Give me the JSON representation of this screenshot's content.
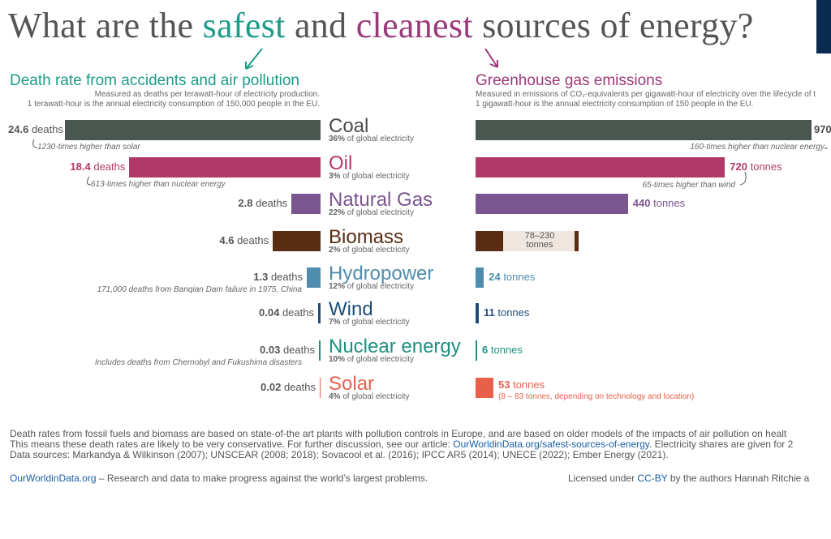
{
  "title": {
    "prefix": "What are the",
    "safest": "safest",
    "and": "and",
    "cleanest": "cleanest",
    "suffix": "sources of energy?"
  },
  "left_panel": {
    "heading": "Death rate from accidents and air pollution",
    "sub1": "Measured as deaths per terawatt-hour of electricity production.",
    "sub2": "1 terawatt-hour is the annual electricity consumption of 150,000 people in the EU."
  },
  "right_panel": {
    "heading": "Greenhouse gas emissions",
    "sub1": "Measured in emissions of CO₂-equivalents per gigawatt-hour of electricity over the lifecycle of t",
    "sub2": "1 gigawatt-hour is the annual electricity consumption of 150 people in the EU."
  },
  "colors": {
    "coal": "#4a5750",
    "oil": "#b1396a",
    "gas": "#7b5590",
    "biomass": "#5a2c14",
    "hydro": "#4f8cad",
    "wind": "#1e4d78",
    "nuclear": "#1e8f80",
    "solar": "#e8604c"
  },
  "chart_data": [
    {
      "type": "bar",
      "title": "Death rate from accidents and air pollution",
      "categories": [
        "Coal",
        "Oil",
        "Natural Gas",
        "Biomass",
        "Hydropower",
        "Wind",
        "Nuclear energy",
        "Solar"
      ],
      "values": [
        24.6,
        18.4,
        2.8,
        4.6,
        1.3,
        0.04,
        0.03,
        0.02
      ],
      "unit": "deaths per terawatt-hour",
      "value_labels": [
        "24.6",
        "18.4",
        "2.8",
        "4.6",
        "1.3",
        "0.04",
        "0.03",
        "0.02"
      ],
      "unit_word": "deaths",
      "orientation": "horizontal-leftward"
    },
    {
      "type": "bar",
      "title": "Greenhouse gas emissions",
      "categories": [
        "Coal",
        "Oil",
        "Natural Gas",
        "Biomass",
        "Hydropower",
        "Wind",
        "Nuclear energy",
        "Solar"
      ],
      "values": [
        970,
        720,
        440,
        78,
        24,
        11,
        6,
        53
      ],
      "range_biomass": [
        78,
        230
      ],
      "unit": "tonnes CO2-eq per gigawatt-hour",
      "value_labels": [
        "970",
        "720",
        "440",
        "78–230",
        "24",
        "11",
        "6",
        "53"
      ],
      "unit_word": "tonnes",
      "orientation": "horizontal-rightward"
    }
  ],
  "categories": [
    {
      "name": "Coal",
      "share": "36%",
      "share_text": "of global electricity",
      "death_note": "1230-times higher than solar",
      "ghg_note": "160-times higher than nuclear energy"
    },
    {
      "name": "Oil",
      "share": "3%",
      "share_text": "of global electricity",
      "death_note": "613-times higher than nuclear energy",
      "ghg_note": "65-times higher than wind"
    },
    {
      "name": "Natural Gas",
      "share": "22%",
      "share_text": "of global electricity"
    },
    {
      "name": "Biomass",
      "share": "2%",
      "share_text": "of global electricity",
      "ghg_range": "78–230",
      "ghg_range_unit": "tonnes"
    },
    {
      "name": "Hydropower",
      "share": "12%",
      "share_text": "of global electricity",
      "death_note": "171,000 deaths from Banqian Dam failure in 1975, China"
    },
    {
      "name": "Wind",
      "share": "7%",
      "share_text": "of global electricity"
    },
    {
      "name": "Nuclear energy",
      "share": "10%",
      "share_text": "of global electricity",
      "death_note": "Includes deaths from Chernobyl and Fukushima disasters"
    },
    {
      "name": "Solar",
      "share": "4%",
      "share_text": "of global electricity",
      "ghg_note": "(8 – 83 tonnes, depending on technology and location)"
    }
  ],
  "footer": {
    "line1": "Death rates from fossil fuels and biomass are based on state-of-the art plants with pollution controls in Europe, and are based on older models of the impacts of air pollution on healt",
    "line2a": "This means these death rates are likely to be very conservative. For further discussion, see our article: ",
    "line2link": "OurWorldinData.org/safest-sources-of-energy",
    "line2b": ". Electricity shares are given for 2",
    "line3": "Data sources: Markandya & Wilkinson (2007); UNSCEAR (2008; 2018); Sovacool et al. (2016); IPCC AR5 (2014); UNECE (2022); Ember Energy (2021).",
    "line4link": "OurWorldinData.org",
    "line4b": " – Research and data to make progress against the world’s largest problems.",
    "license_a": "Licensed under ",
    "license_link": "CC-BY",
    "license_b": " by the authors Hannah Ritchie a"
  }
}
